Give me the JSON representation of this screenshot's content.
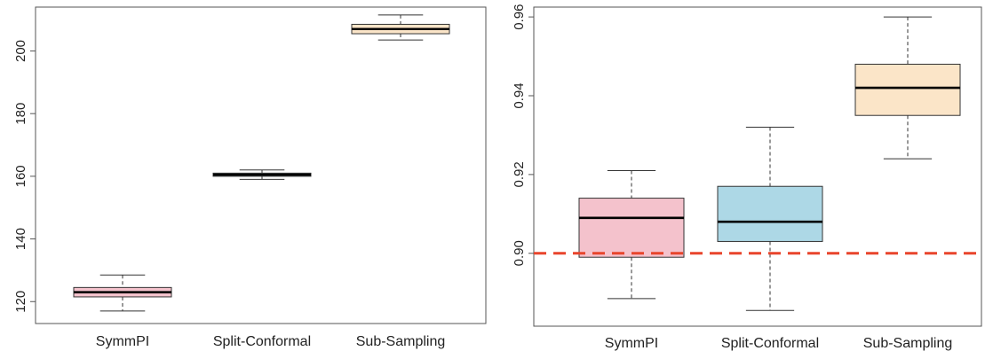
{
  "chart_data": [
    {
      "type": "boxplot",
      "categories": [
        "SymmPI",
        "Split-Conformal",
        "Sub-Sampling"
      ],
      "ylim": [
        113,
        214
      ],
      "yticks": [
        120,
        140,
        160,
        180,
        200
      ],
      "boxes": [
        {
          "name": "SymmPI",
          "min": 117,
          "q1": 121.5,
          "median": 123,
          "q3": 124.5,
          "max": 128.5,
          "color": "#f4c2cc"
        },
        {
          "name": "Split-Conformal",
          "min": 159,
          "q1": 160,
          "median": 160.5,
          "q3": 161,
          "max": 162,
          "color": "#add8e6"
        },
        {
          "name": "Sub-Sampling",
          "min": 203.5,
          "q1": 205.5,
          "median": 207,
          "q3": 208.5,
          "max": 211.5,
          "color": "#fbe5c8"
        }
      ],
      "grid": false
    },
    {
      "type": "boxplot",
      "categories": [
        "SymmPI",
        "Split-Conformal",
        "Sub-Sampling"
      ],
      "ylim": [
        0.8815,
        0.9625
      ],
      "yticks": [
        0.9,
        0.92,
        0.94,
        0.96
      ],
      "ytick_labels": [
        "0.90",
        "0.92",
        "0.94",
        "0.96"
      ],
      "boxes": [
        {
          "name": "SymmPI",
          "min": 0.8885,
          "q1": 0.899,
          "median": 0.909,
          "q3": 0.914,
          "max": 0.921,
          "color": "#f4c2cc"
        },
        {
          "name": "Split-Conformal",
          "min": 0.8855,
          "q1": 0.903,
          "median": 0.908,
          "q3": 0.917,
          "max": 0.932,
          "color": "#add8e6"
        },
        {
          "name": "Sub-Sampling",
          "min": 0.924,
          "q1": 0.935,
          "median": 0.942,
          "q3": 0.948,
          "max": 0.96,
          "color": "#fbe5c8"
        }
      ],
      "reference_line": {
        "y": 0.9,
        "color": "#e8452c",
        "style": "dashed"
      },
      "grid": false
    }
  ]
}
